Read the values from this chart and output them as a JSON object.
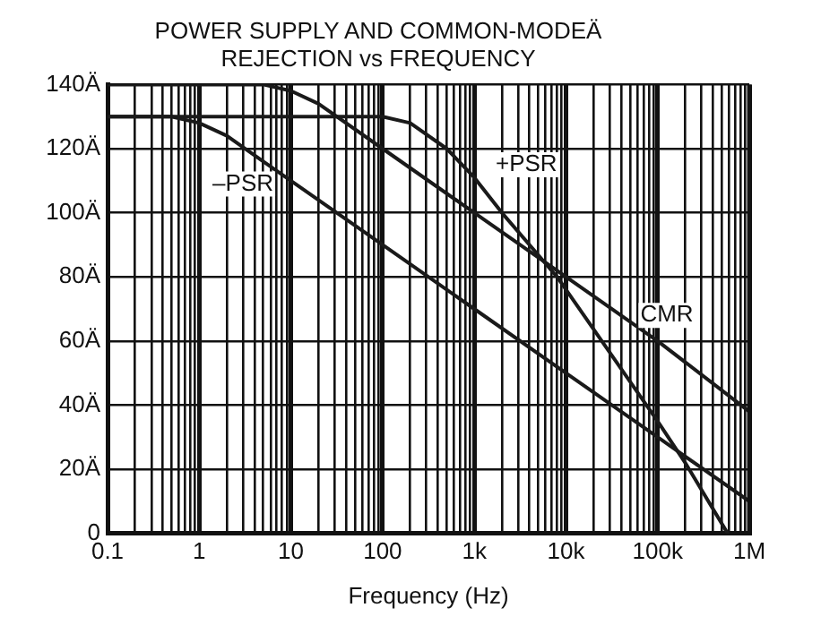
{
  "chart_data": {
    "type": "line",
    "title": "POWER SUPPLY AND COMMON-MODEÄ\nREJECTION vs FREQUENCY",
    "xlabel": "Frequency (Hz)",
    "log": "x",
    "xlim": [
      0.1,
      1000000
    ],
    "xticks": [
      {
        "value": 0.1,
        "label": "0.1"
      },
      {
        "value": 0.2,
        "label": null
      },
      {
        "value": 0.3,
        "label": null
      },
      {
        "value": 0.4,
        "label": null
      },
      {
        "value": 0.5,
        "label": null
      },
      {
        "value": 0.6,
        "label": null
      },
      {
        "value": 0.7,
        "label": null
      },
      {
        "value": 0.8,
        "label": null
      },
      {
        "value": 0.9,
        "label": null
      },
      {
        "value": 1,
        "label": "1"
      },
      {
        "value": 2,
        "label": null
      },
      {
        "value": 3,
        "label": null
      },
      {
        "value": 4,
        "label": null
      },
      {
        "value": 5,
        "label": null
      },
      {
        "value": 6,
        "label": null
      },
      {
        "value": 7,
        "label": null
      },
      {
        "value": 8,
        "label": null
      },
      {
        "value": 9,
        "label": null
      },
      {
        "value": 10,
        "label": "10"
      },
      {
        "value": 20,
        "label": null
      },
      {
        "value": 30,
        "label": null
      },
      {
        "value": 40,
        "label": null
      },
      {
        "value": 50,
        "label": null
      },
      {
        "value": 60,
        "label": null
      },
      {
        "value": 70,
        "label": null
      },
      {
        "value": 80,
        "label": null
      },
      {
        "value": 90,
        "label": null
      },
      {
        "value": 100,
        "label": "100"
      },
      {
        "value": 200,
        "label": null
      },
      {
        "value": 300,
        "label": null
      },
      {
        "value": 400,
        "label": null
      },
      {
        "value": 500,
        "label": null
      },
      {
        "value": 600,
        "label": null
      },
      {
        "value": 700,
        "label": null
      },
      {
        "value": 800,
        "label": null
      },
      {
        "value": 900,
        "label": null
      },
      {
        "value": 1000,
        "label": "1k"
      },
      {
        "value": 2000,
        "label": null
      },
      {
        "value": 3000,
        "label": null
      },
      {
        "value": 4000,
        "label": null
      },
      {
        "value": 5000,
        "label": null
      },
      {
        "value": 6000,
        "label": null
      },
      {
        "value": 7000,
        "label": null
      },
      {
        "value": 8000,
        "label": null
      },
      {
        "value": 9000,
        "label": null
      },
      {
        "value": 10000,
        "label": "10k"
      },
      {
        "value": 20000,
        "label": null
      },
      {
        "value": 30000,
        "label": null
      },
      {
        "value": 40000,
        "label": null
      },
      {
        "value": 50000,
        "label": null
      },
      {
        "value": 60000,
        "label": null
      },
      {
        "value": 70000,
        "label": null
      },
      {
        "value": 80000,
        "label": null
      },
      {
        "value": 90000,
        "label": null
      },
      {
        "value": 100000,
        "label": "100k"
      },
      {
        "value": 200000,
        "label": null
      },
      {
        "value": 300000,
        "label": null
      },
      {
        "value": 400000,
        "label": null
      },
      {
        "value": 500000,
        "label": null
      },
      {
        "value": 600000,
        "label": null
      },
      {
        "value": 700000,
        "label": null
      },
      {
        "value": 800000,
        "label": null
      },
      {
        "value": 900000,
        "label": null
      },
      {
        "value": 1000000,
        "label": "1M"
      }
    ],
    "ylim": [
      0,
      140
    ],
    "yticks": [
      0,
      {
        "value": 20,
        "label": "20Ä"
      },
      {
        "value": 40,
        "label": "40Ä"
      },
      {
        "value": 60,
        "label": "60Ä"
      },
      {
        "value": 80,
        "label": "80Ä"
      },
      {
        "value": 100,
        "label": "100Ä"
      },
      {
        "value": 120,
        "label": "120Ä"
      },
      {
        "value": 140,
        "label": "140Ä"
      }
    ],
    "grid": true,
    "legend": false,
    "line_style": "solid",
    "marker": "none",
    "series": [
      {
        "color": "#1a1a1a",
        "x": [
          0.1,
          0.5,
          1,
          2,
          5,
          10,
          100,
          1000,
          10000,
          100000,
          1000000
        ],
        "values": [
          130,
          130,
          128,
          124,
          116,
          110,
          90,
          70,
          50,
          30,
          10
        ]
      },
      {
        "color": "#1a1a1a",
        "x": [
          0.1,
          100,
          200,
          500,
          1000,
          2000,
          8000,
          100000,
          200000,
          580000
        ],
        "values": [
          130,
          130,
          128,
          120,
          111,
          100,
          80,
          35,
          22,
          0
        ]
      },
      {
        "color": "#1a1a1a",
        "x": [
          0.1,
          5,
          10,
          20,
          100,
          1000,
          10000,
          100000,
          1000000
        ],
        "values": [
          140,
          140,
          138,
          134,
          120,
          100,
          80,
          60,
          38
        ]
      }
    ],
    "annotations": [
      {
        "text": "–PSR",
        "x": 3,
        "y": 109
      },
      {
        "text": "+PSR",
        "x": 3700,
        "y": 115
      },
      {
        "text": "CMR",
        "x": 126000,
        "y": 68
      }
    ]
  }
}
